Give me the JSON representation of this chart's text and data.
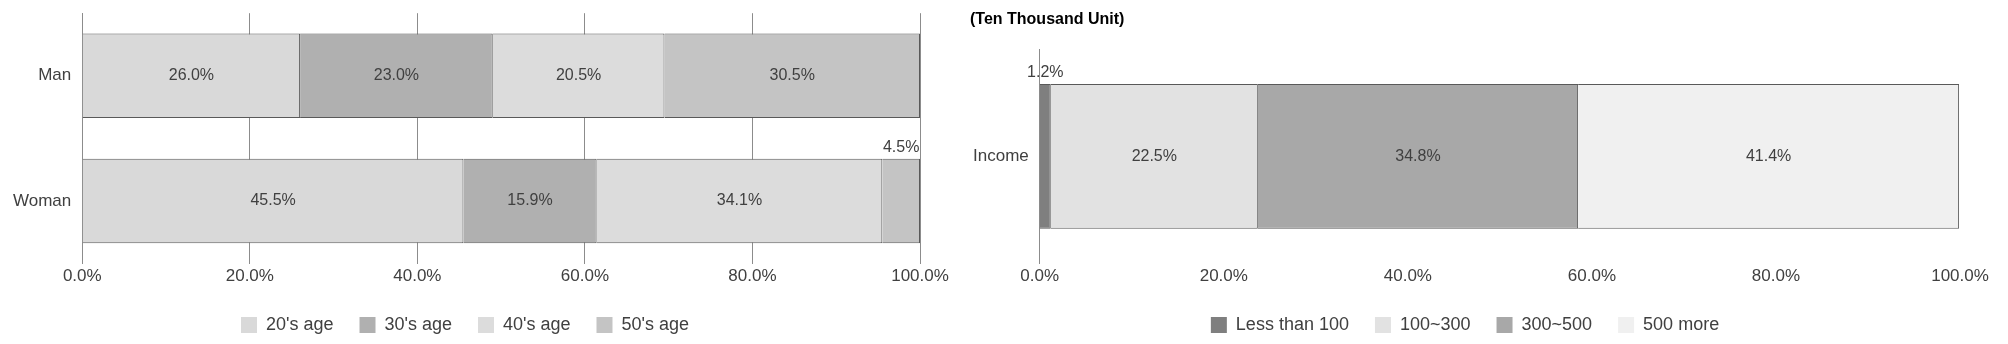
{
  "chart_data": [
    {
      "type": "bar",
      "orientation": "horizontal",
      "stacked": true,
      "categories": [
        "Man",
        "Woman"
      ],
      "series": [
        {
          "name": "20's age",
          "color": "#d9d9d9",
          "values": [
            26.0,
            45.5
          ],
          "value_labels": [
            "26.0%",
            "45.5%"
          ]
        },
        {
          "name": "30's age",
          "color": "#b0b0b0",
          "values": [
            23.0,
            15.9
          ],
          "value_labels": [
            "23.0%",
            "15.9%"
          ]
        },
        {
          "name": "40's age",
          "color": "#dcdcdc",
          "values": [
            20.5,
            34.1
          ],
          "value_labels": [
            "20.5%",
            "34.1%"
          ]
        },
        {
          "name": "50's age",
          "color": "#c4c4c4",
          "values": [
            30.5,
            4.5
          ],
          "value_labels": [
            "30.5%",
            "4.5%"
          ]
        }
      ],
      "xlim": [
        0,
        100
      ],
      "xticks": [
        {
          "value": 0,
          "label": "0.0%"
        },
        {
          "value": 20,
          "label": "20.0%"
        },
        {
          "value": 40,
          "label": "40.0%"
        },
        {
          "value": 60,
          "label": "60.0%"
        },
        {
          "value": 80,
          "label": "80.0%"
        },
        {
          "value": 100,
          "label": "100.0%"
        }
      ],
      "grid": "x",
      "legend": "bottom"
    },
    {
      "type": "bar",
      "orientation": "horizontal",
      "stacked": true,
      "title": "(Ten Thousand Unit)",
      "categories": [
        "Income"
      ],
      "series": [
        {
          "name": "Less than 100",
          "color": "#7f7f7f",
          "values": [
            1.2
          ],
          "value_labels": [
            "1.2%"
          ]
        },
        {
          "name": "100~300",
          "color": "#e2e2e2",
          "values": [
            22.5
          ],
          "value_labels": [
            "22.5%"
          ]
        },
        {
          "name": "300~500",
          "color": "#a8a8a8",
          "values": [
            34.8
          ],
          "value_labels": [
            "34.8%"
          ]
        },
        {
          "name": "500 more",
          "color": "#f0f0f0",
          "values": [
            41.4
          ],
          "value_labels": [
            "41.4%"
          ]
        }
      ],
      "xlim": [
        0,
        100
      ],
      "xticks": [
        {
          "value": 0,
          "label": "0.0%"
        },
        {
          "value": 20,
          "label": "20.0%"
        },
        {
          "value": 40,
          "label": "40.0%"
        },
        {
          "value": 60,
          "label": "60.0%"
        },
        {
          "value": 80,
          "label": "80.0%"
        },
        {
          "value": 100,
          "label": "100.0%"
        }
      ],
      "grid": false,
      "legend": "bottom"
    }
  ]
}
